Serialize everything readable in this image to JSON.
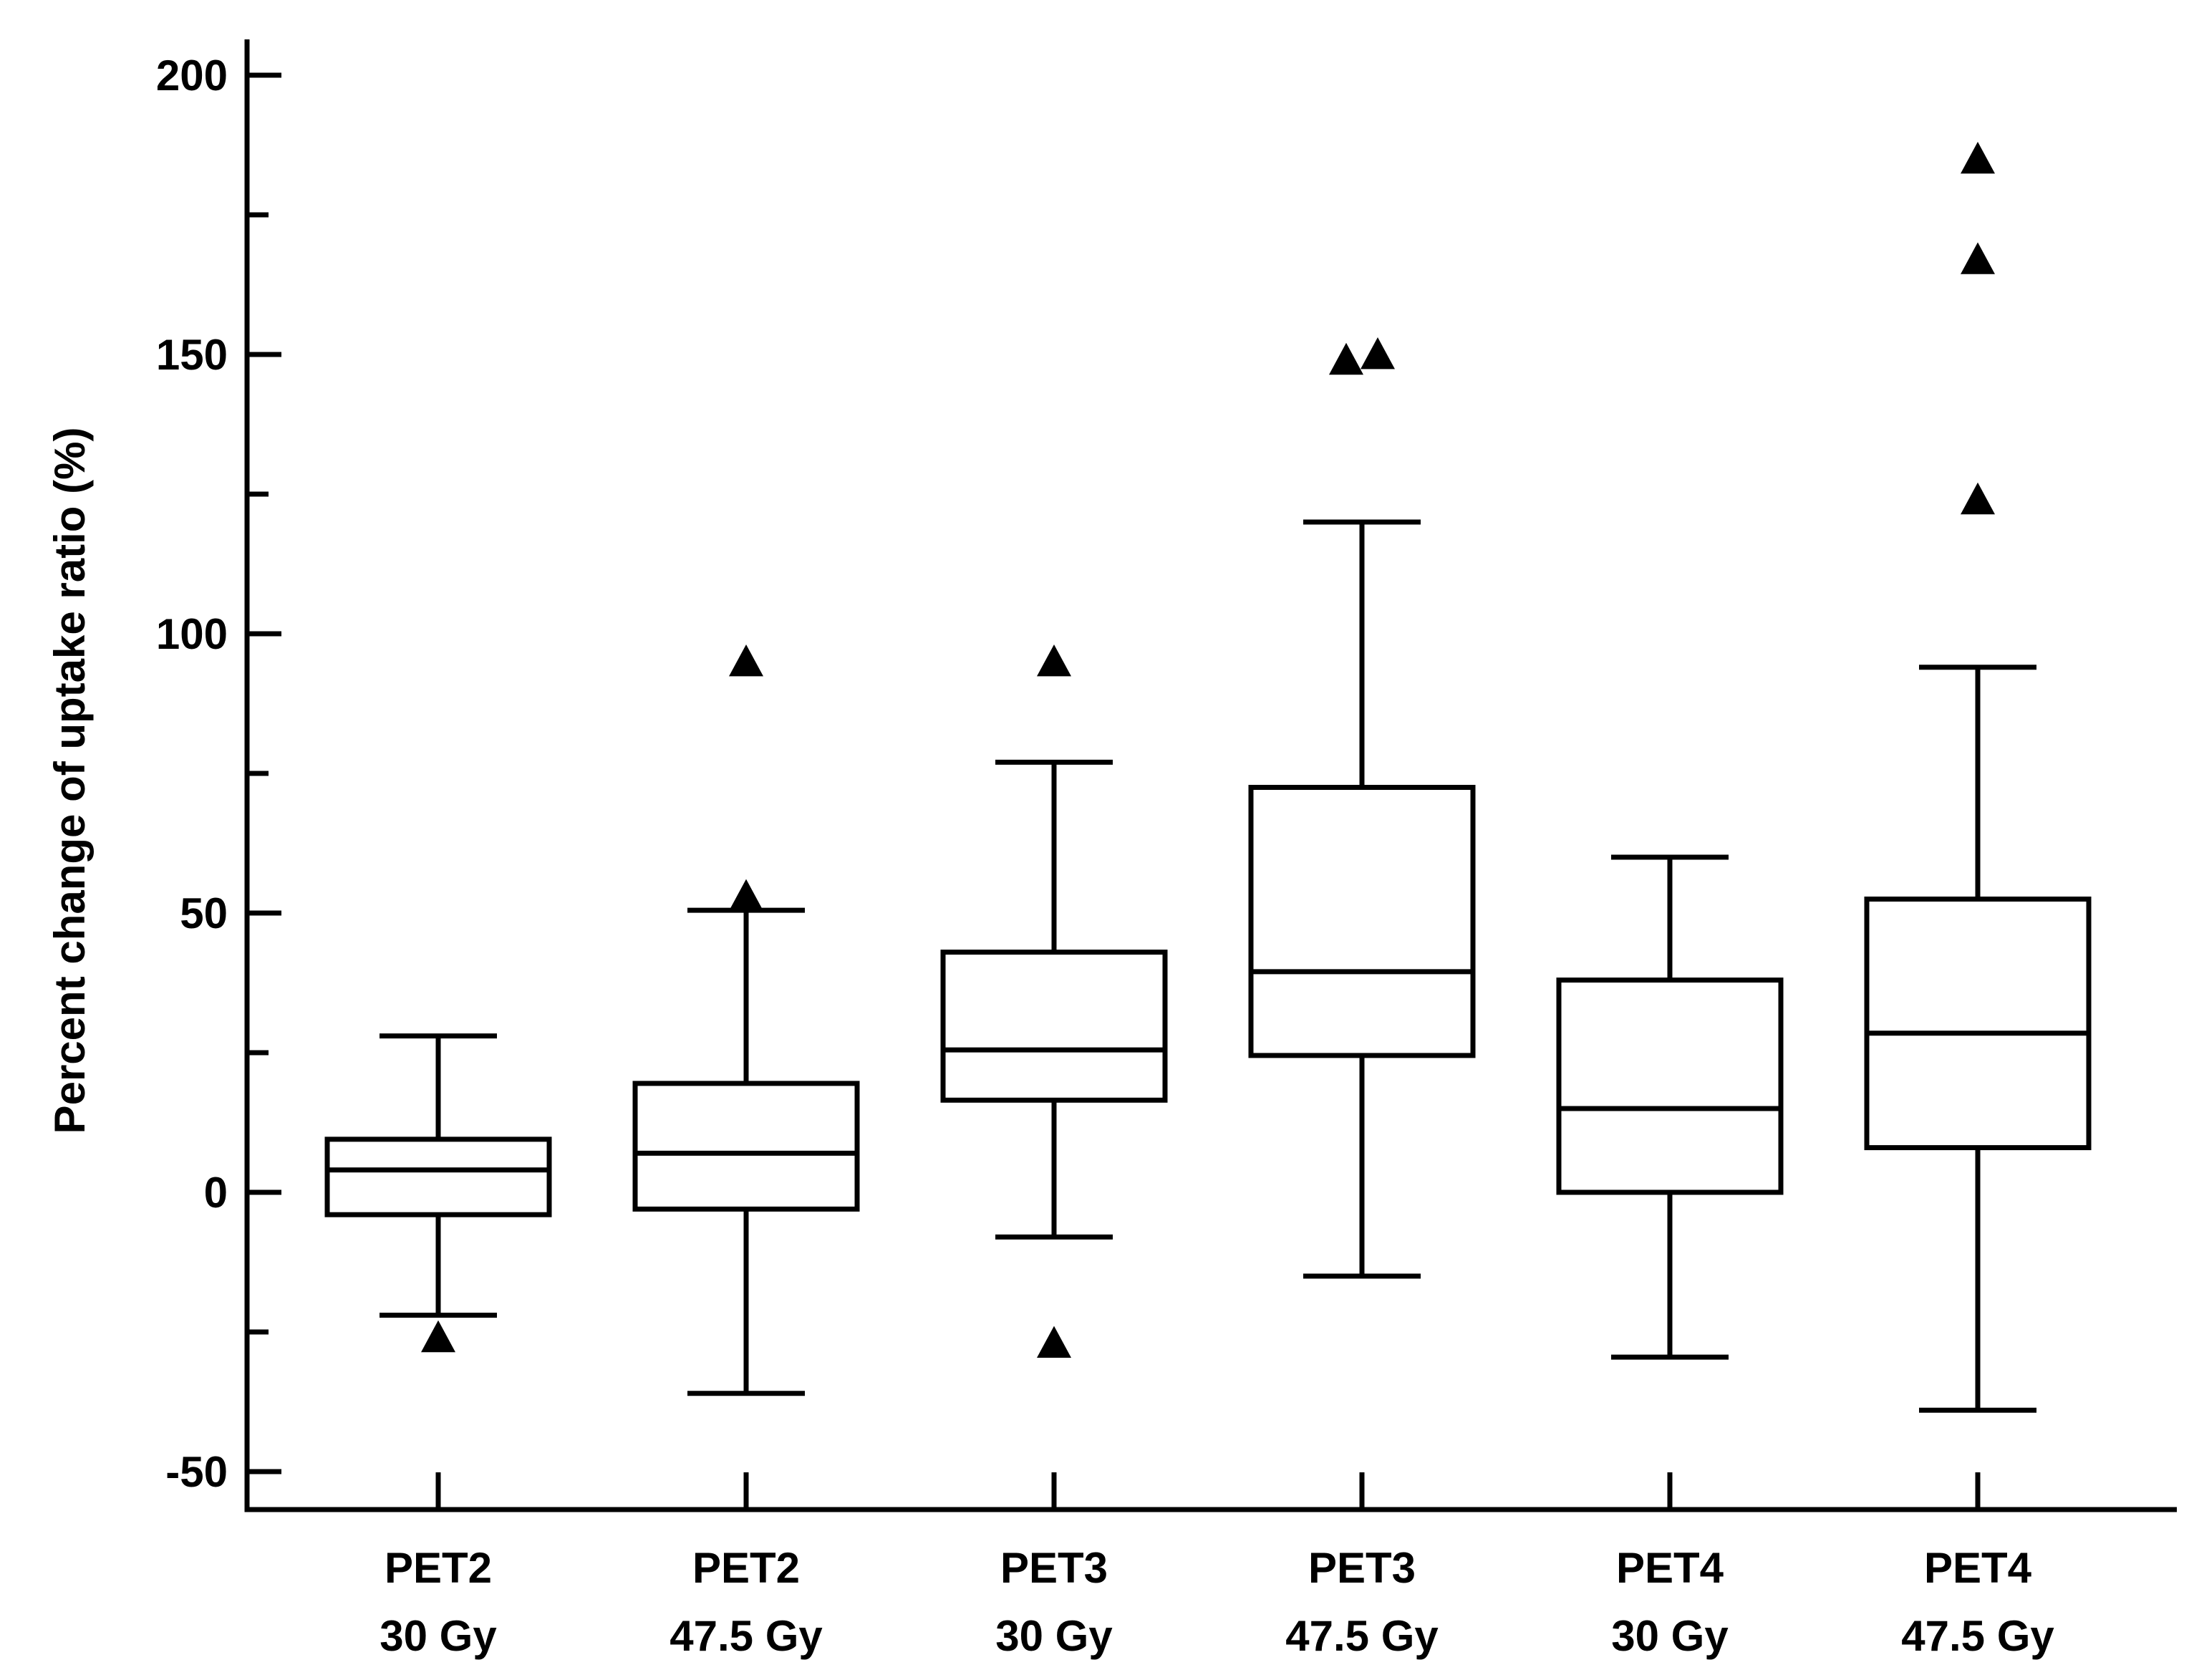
{
  "chart_data": {
    "type": "boxplot",
    "title": "",
    "xlabel": "",
    "ylabel": "Percent change of uptake ratio (%)",
    "ylim": [
      -57,
      207
    ],
    "yticks_major": [
      -50,
      0,
      50,
      100,
      150,
      200
    ],
    "yticks_minor": [
      -25,
      25,
      75,
      125,
      175
    ],
    "ytick_labels": [
      "-50",
      "0",
      "50",
      "100",
      "150",
      "200"
    ],
    "grid": false,
    "legend": "none",
    "categories": [
      {
        "line1": "PET2",
        "line2": "30 Gy"
      },
      {
        "line1": "PET2",
        "line2": "47.5 Gy"
      },
      {
        "line1": "PET3",
        "line2": "30 Gy"
      },
      {
        "line1": "PET3",
        "line2": "47.5 Gy"
      },
      {
        "line1": "PET4",
        "line2": "30 Gy"
      },
      {
        "line1": "PET4",
        "line2": "47.5 Gy"
      }
    ],
    "boxes": [
      {
        "whisker_low": -22,
        "q1": -4,
        "median": 4,
        "q3": 9.5,
        "whisker_high": 28,
        "outliers": [
          -26
        ]
      },
      {
        "whisker_low": -36,
        "q1": -3,
        "median": 7,
        "q3": 19.5,
        "whisker_high": 50.5,
        "outliers": [
          95,
          53
        ]
      },
      {
        "whisker_low": -8,
        "q1": 16.5,
        "median": 25.5,
        "q3": 43,
        "whisker_high": 77,
        "outliers": [
          95,
          -27
        ]
      },
      {
        "whisker_low": -15,
        "q1": 24.5,
        "median": 39.5,
        "q3": 72.5,
        "whisker_high": 120,
        "outliers": [
          149,
          150
        ]
      },
      {
        "whisker_low": -29.5,
        "q1": 0,
        "median": 15,
        "q3": 38,
        "whisker_high": 60,
        "outliers": []
      },
      {
        "whisker_low": -39,
        "q1": 8,
        "median": 28.5,
        "q3": 52.5,
        "whisker_high": 94,
        "outliers": [
          185,
          167,
          124
        ]
      }
    ],
    "outlier_marker": "filled-triangle",
    "colors": {
      "line": "#000000",
      "background": "#ffffff"
    }
  }
}
